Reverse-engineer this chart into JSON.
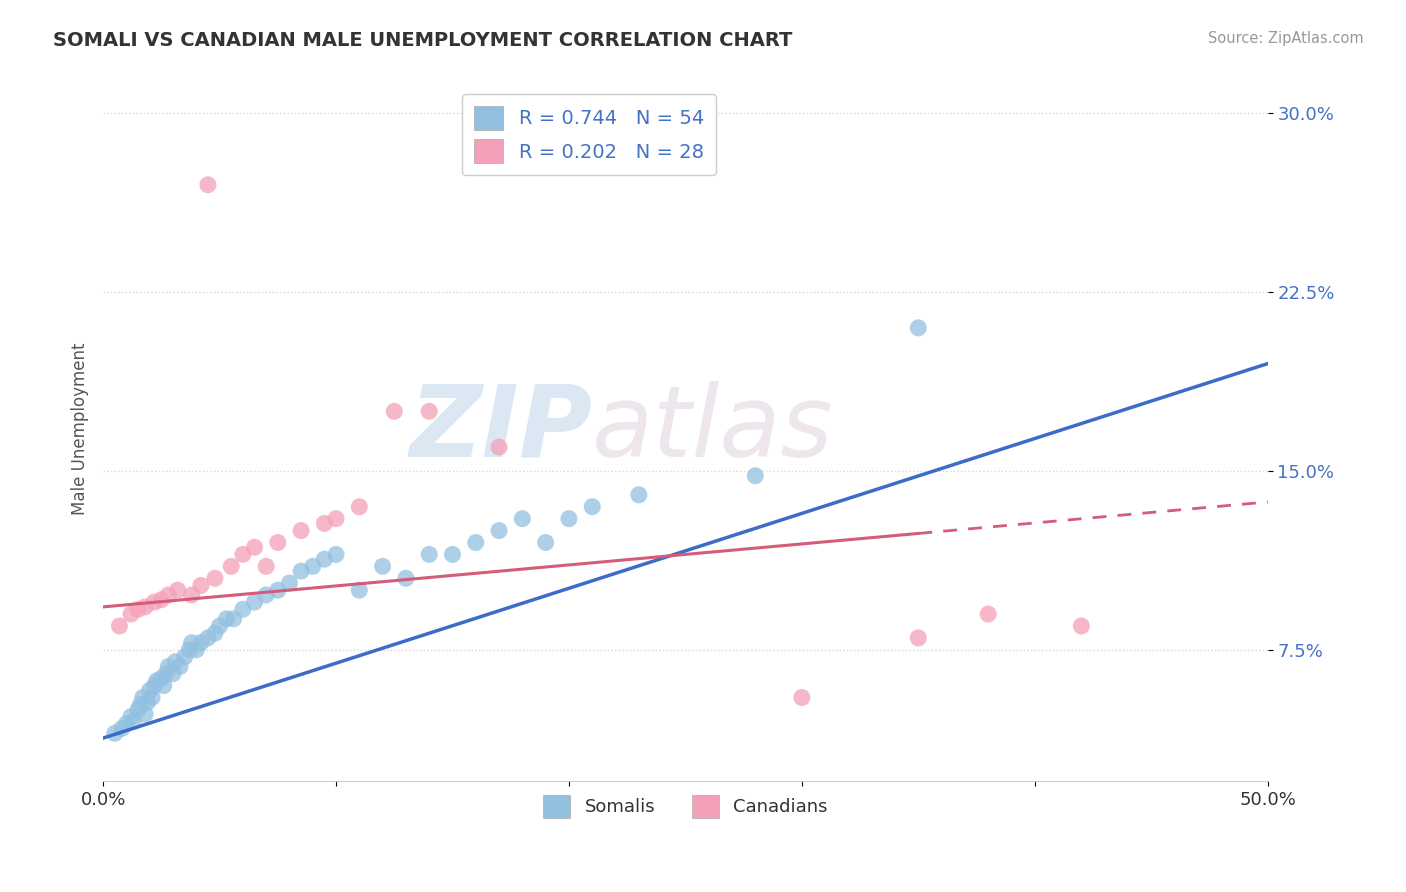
{
  "title": "SOMALI VS CANADIAN MALE UNEMPLOYMENT CORRELATION CHART",
  "source": "Source: ZipAtlas.com",
  "ylabel": "Male Unemployment",
  "y_ticks": [
    0.075,
    0.15,
    0.225,
    0.3
  ],
  "y_tick_labels": [
    "7.5%",
    "15.0%",
    "22.5%",
    "30.0%"
  ],
  "xlim": [
    0.0,
    0.5
  ],
  "ylim": [
    0.02,
    0.315
  ],
  "somali_color": "#92C0E0",
  "canadian_color": "#F4A0B8",
  "trend_somali_color": "#3B6CC7",
  "trend_canadian_color": "#D45C78",
  "somali_trend_start_y": 0.038,
  "somali_trend_end_y": 0.195,
  "canadian_trend_start_y": 0.093,
  "canadian_trend_end_y": 0.137,
  "somali_x": [
    0.005,
    0.008,
    0.01,
    0.012,
    0.013,
    0.015,
    0.016,
    0.017,
    0.018,
    0.019,
    0.02,
    0.021,
    0.022,
    0.023,
    0.025,
    0.026,
    0.027,
    0.028,
    0.03,
    0.031,
    0.033,
    0.035,
    0.037,
    0.038,
    0.04,
    0.042,
    0.045,
    0.048,
    0.05,
    0.053,
    0.056,
    0.06,
    0.065,
    0.07,
    0.075,
    0.08,
    0.085,
    0.09,
    0.095,
    0.1,
    0.11,
    0.12,
    0.13,
    0.14,
    0.15,
    0.16,
    0.17,
    0.18,
    0.19,
    0.2,
    0.21,
    0.23,
    0.28,
    0.35
  ],
  "somali_y": [
    0.04,
    0.042,
    0.044,
    0.047,
    0.045,
    0.05,
    0.052,
    0.055,
    0.048,
    0.053,
    0.058,
    0.055,
    0.06,
    0.062,
    0.063,
    0.06,
    0.065,
    0.068,
    0.065,
    0.07,
    0.068,
    0.072,
    0.075,
    0.078,
    0.075,
    0.078,
    0.08,
    0.082,
    0.085,
    0.088,
    0.088,
    0.092,
    0.095,
    0.098,
    0.1,
    0.103,
    0.108,
    0.11,
    0.113,
    0.115,
    0.1,
    0.11,
    0.105,
    0.115,
    0.115,
    0.12,
    0.125,
    0.13,
    0.12,
    0.13,
    0.135,
    0.14,
    0.148,
    0.21
  ],
  "canadian_x": [
    0.007,
    0.012,
    0.015,
    0.018,
    0.022,
    0.025,
    0.028,
    0.032,
    0.038,
    0.042,
    0.048,
    0.055,
    0.06,
    0.065,
    0.07,
    0.075,
    0.085,
    0.095,
    0.1,
    0.11,
    0.125,
    0.14,
    0.17,
    0.3,
    0.35,
    0.38,
    0.42,
    0.045
  ],
  "canadian_y": [
    0.085,
    0.09,
    0.092,
    0.093,
    0.095,
    0.096,
    0.098,
    0.1,
    0.098,
    0.102,
    0.105,
    0.11,
    0.115,
    0.118,
    0.11,
    0.12,
    0.125,
    0.128,
    0.13,
    0.135,
    0.175,
    0.175,
    0.16,
    0.055,
    0.08,
    0.09,
    0.085,
    0.27
  ],
  "watermark_part1": "ZIP",
  "watermark_part2": "atlas",
  "background_color": "#FFFFFF",
  "grid_color": "#CCCCCC"
}
